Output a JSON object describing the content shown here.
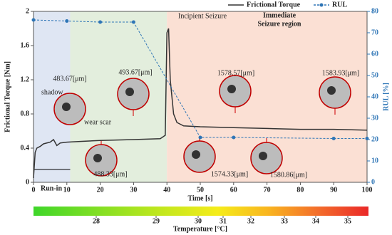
{
  "chart_data": {
    "type": "line",
    "xlabel": "Time [s]",
    "ylabel": "Frictional Torque [Nm]",
    "y2label": "RUL [%]",
    "xlim": [
      0,
      100
    ],
    "xticks": [
      0,
      10,
      20,
      30,
      40,
      50,
      60,
      70,
      80,
      90,
      100
    ],
    "ylim": [
      0,
      2
    ],
    "yticks": [
      0,
      0.4,
      0.8,
      1.2,
      1.6,
      2
    ],
    "y2lim": [
      0,
      80
    ],
    "y2ticks": [
      0,
      10,
      20,
      30,
      40,
      50,
      60,
      70,
      80
    ],
    "legend": "top-right",
    "regions": [
      {
        "xlim": [
          0,
          11
        ],
        "color": "#dfe6f3"
      },
      {
        "xlim": [
          11,
          40
        ],
        "color": "#e3eedd"
      },
      {
        "xlim": [
          40,
          100
        ],
        "color": "#fbe0d4"
      }
    ],
    "series": [
      {
        "name": "Frictional Torque",
        "color": "#333333",
        "x": [
          0,
          0.5,
          1,
          2,
          3,
          5,
          6,
          7,
          8,
          10,
          15,
          20,
          30,
          38,
          39.5,
          40,
          40.5,
          41,
          42,
          43,
          45,
          50,
          60,
          70,
          80,
          90,
          100
        ],
        "values": [
          0.05,
          0.35,
          0.4,
          0.42,
          0.45,
          0.47,
          0.5,
          0.43,
          0.46,
          0.47,
          0.48,
          0.49,
          0.5,
          0.51,
          0.55,
          1.75,
          1.8,
          1.2,
          0.8,
          0.7,
          0.66,
          0.65,
          0.64,
          0.63,
          0.62,
          0.62,
          0.61
        ]
      },
      {
        "name": "RUL",
        "color": "#2e75b6",
        "axis": "y2",
        "x": [
          0,
          10,
          20,
          30,
          50,
          60,
          90,
          100
        ],
        "values": [
          76,
          75.5,
          75,
          75,
          21,
          21,
          20.5,
          20.5
        ]
      }
    ],
    "annotations": [
      "Incipient Seizure",
      "Immediate",
      "Seizure region",
      "Run-in",
      "shadow",
      "wear scar",
      "483.67[μm]",
      "493.67[μm]",
      "488.33[μm]",
      "1578.57[μm]",
      "1574.33[μm]",
      "1580.86[μm]",
      "1583.93[μm]"
    ],
    "colorbar": {
      "label": "Temperature [°C]",
      "ticks": [
        28,
        29,
        30,
        31,
        32,
        33,
        34,
        35
      ]
    }
  }
}
